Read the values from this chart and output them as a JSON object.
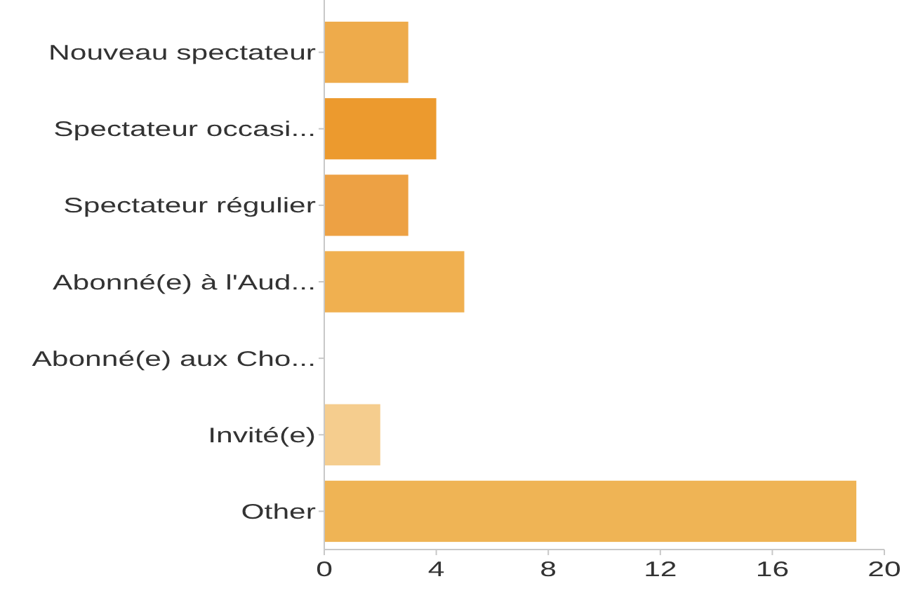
{
  "chart_data": {
    "type": "bar",
    "orientation": "horizontal",
    "categories": [
      "Nouveau spectateur",
      "Spectateur occasi...",
      "Spectateur régulier",
      "Abonné(e) à l'Aud...",
      "Abonné(e) aux Cho...",
      "Invité(e)",
      "Other"
    ],
    "values": [
      3,
      4,
      3,
      5,
      0,
      2,
      19
    ],
    "colors": [
      "#eeab4b",
      "#ec9a2e",
      "#eda144",
      "#f0b050",
      "#f0b050",
      "#f5cd8e",
      "#efb455"
    ],
    "xlim": [
      0,
      20
    ],
    "xticks": [
      0,
      4,
      8,
      12,
      16,
      20
    ]
  }
}
